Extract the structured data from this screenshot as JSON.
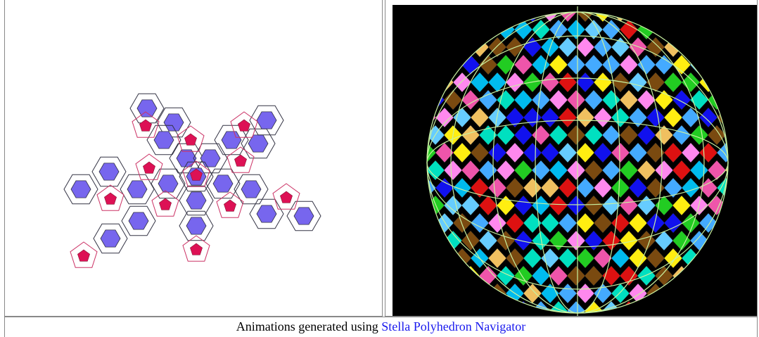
{
  "caption": {
    "text": "Animations generated using",
    "link": "Stella Polyhedron Navigator"
  }
}
